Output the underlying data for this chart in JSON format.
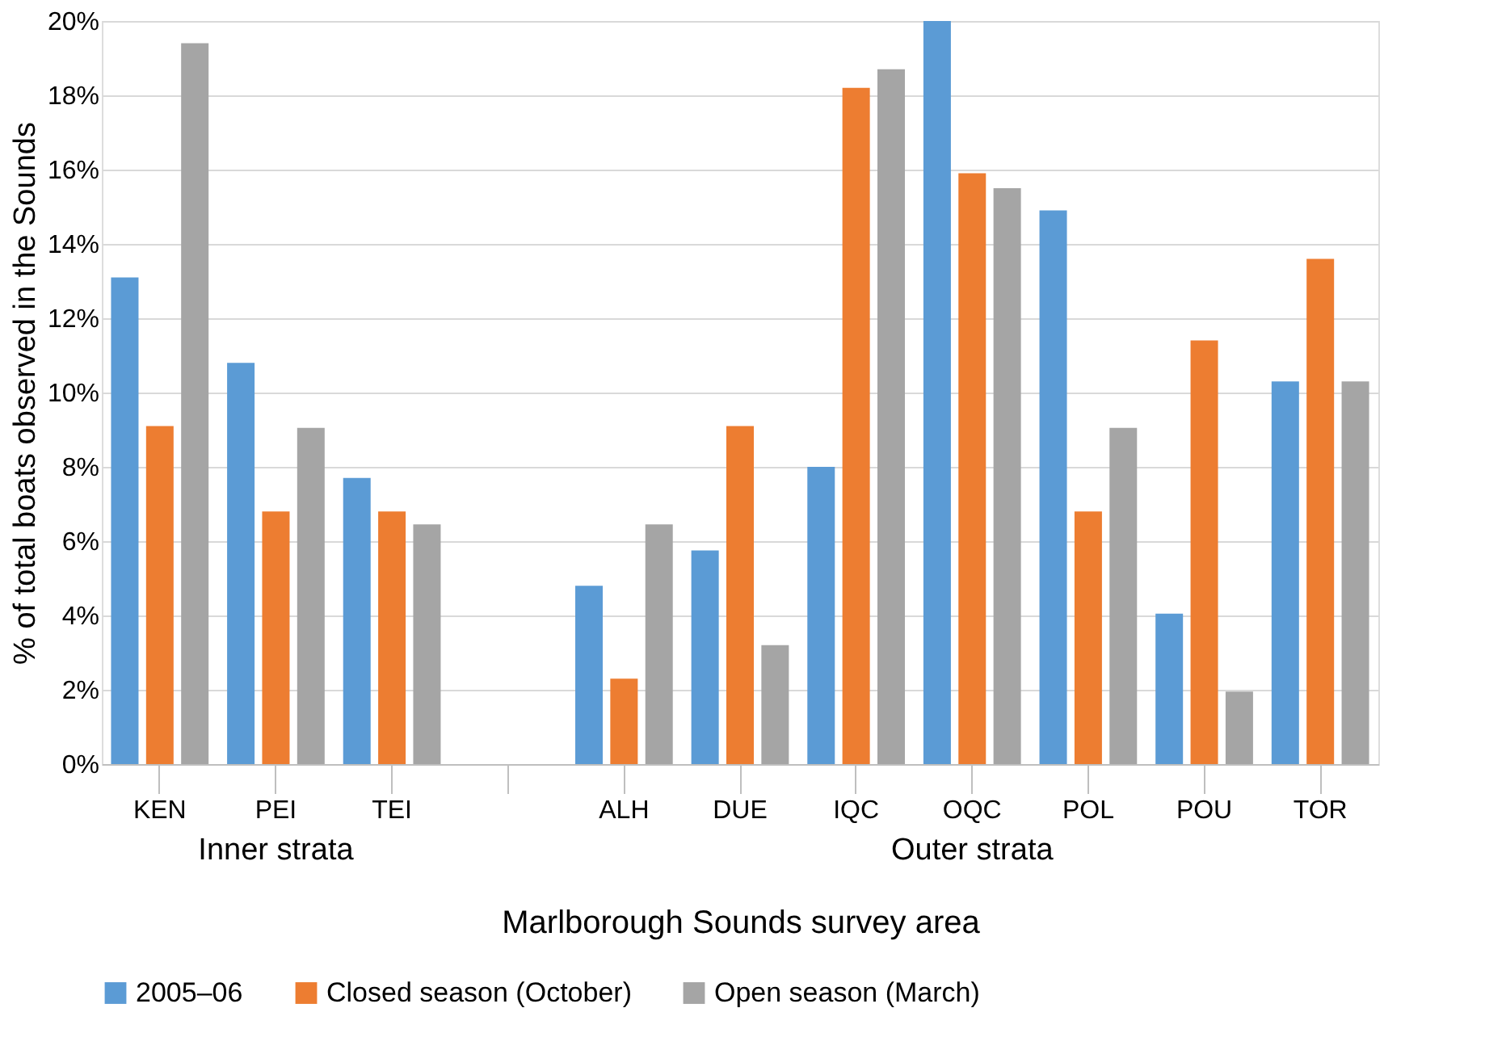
{
  "chart_data": {
    "type": "bar",
    "xlabel": "Marlborough Sounds survey area",
    "ylabel": "% of total boats observed in the Sounds",
    "categories": [
      "KEN",
      "PEI",
      "TEI",
      null,
      "ALH",
      "DUE",
      "IQC",
      "OQC",
      "POL",
      "POU",
      "TOR"
    ],
    "series": [
      {
        "name": "2005–06",
        "color": "#5b9bd5",
        "values": [
          13.1,
          10.8,
          7.7,
          null,
          4.8,
          5.75,
          8.0,
          20.0,
          14.9,
          4.05,
          10.3
        ]
      },
      {
        "name": "Closed season (October)",
        "color": "#ed7d31",
        "values": [
          9.1,
          6.8,
          6.8,
          null,
          2.3,
          9.1,
          18.2,
          15.9,
          6.8,
          11.4,
          13.6
        ]
      },
      {
        "name": "Open season (March)",
        "color": "#a5a5a5",
        "values": [
          19.4,
          9.05,
          6.45,
          null,
          6.45,
          3.2,
          18.7,
          15.5,
          9.05,
          1.95,
          10.3
        ]
      }
    ],
    "ylim": [
      0,
      20
    ],
    "yticks": [
      {
        "value": 0,
        "label": "0%"
      },
      {
        "value": 2,
        "label": "2%"
      },
      {
        "value": 4,
        "label": "4%"
      },
      {
        "value": 6,
        "label": "6%"
      },
      {
        "value": 8,
        "label": "8%"
      },
      {
        "value": 10,
        "label": "10%"
      },
      {
        "value": 12,
        "label": "12%"
      },
      {
        "value": 14,
        "label": "14%"
      },
      {
        "value": 16,
        "label": "16%"
      },
      {
        "value": 18,
        "label": "18%"
      },
      {
        "value": 20,
        "label": "20%"
      }
    ],
    "annotations": [
      "Inner strata",
      "Outer strata"
    ],
    "grid": "y",
    "legend": "bottom"
  }
}
